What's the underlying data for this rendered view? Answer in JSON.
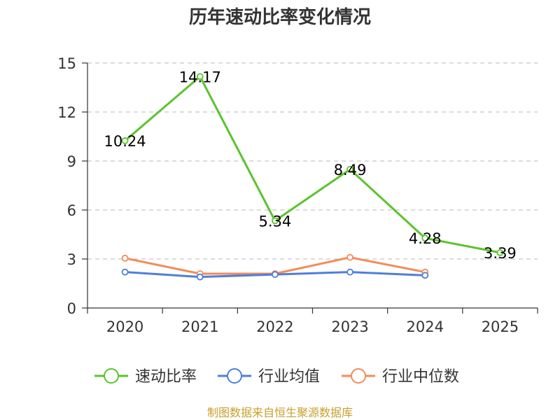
{
  "chart_data": {
    "type": "line",
    "title": "历年速动比率变化情况",
    "categories": [
      "2020",
      "2021",
      "2022",
      "2023",
      "2024",
      "2025"
    ],
    "ylim": [
      0,
      15
    ],
    "yticks": [
      0,
      3,
      6,
      9,
      12,
      15
    ],
    "grid": true,
    "legend_position": "bottom",
    "series": [
      {
        "name": "速动比率",
        "color": "#5cc32d",
        "values": [
          10.24,
          14.17,
          5.34,
          8.49,
          4.28,
          3.39
        ],
        "labels": [
          "10.24",
          "14.17",
          "5.34",
          "8.49",
          "4.28",
          "3.39"
        ]
      },
      {
        "name": "行业均值",
        "color": "#4f7fd8",
        "values": [
          2.2,
          1.9,
          2.05,
          2.2,
          2.0,
          null
        ]
      },
      {
        "name": "行业中位数",
        "color": "#f28c5a",
        "values": [
          3.05,
          2.1,
          2.1,
          3.1,
          2.2,
          null
        ]
      }
    ]
  },
  "source": "制图数据来自恒生聚源数据库"
}
